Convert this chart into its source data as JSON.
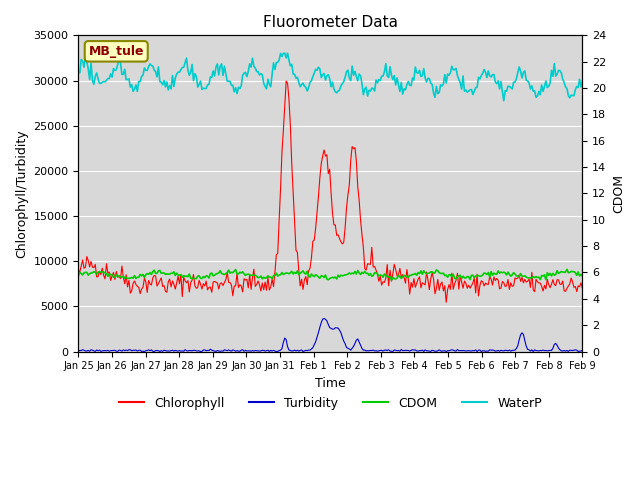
{
  "title": "Fluorometer Data",
  "xlabel": "Time",
  "ylabel_left": "Chlorophyll/Turbidity",
  "ylabel_right": "CDOM",
  "station_label": "MB_tule",
  "ylim_left": [
    0,
    35000
  ],
  "ylim_right": [
    0,
    24
  ],
  "plot_bg_color": "#d8d8d8",
  "x_tick_labels": [
    "Jan 25",
    "Jan 26",
    "Jan 27",
    "Jan 28",
    "Jan 29",
    "Jan 30",
    "Jan 31",
    "Feb 1",
    "Feb 2",
    "Feb 3",
    "Feb 4",
    "Feb 5",
    "Feb 6",
    "Feb 7",
    "Feb 8",
    "Feb 9"
  ],
  "colors": {
    "chlorophyll": "#ff0000",
    "turbidity": "#0000cc",
    "cdom": "#00cc00",
    "waterp": "#00cccc"
  }
}
